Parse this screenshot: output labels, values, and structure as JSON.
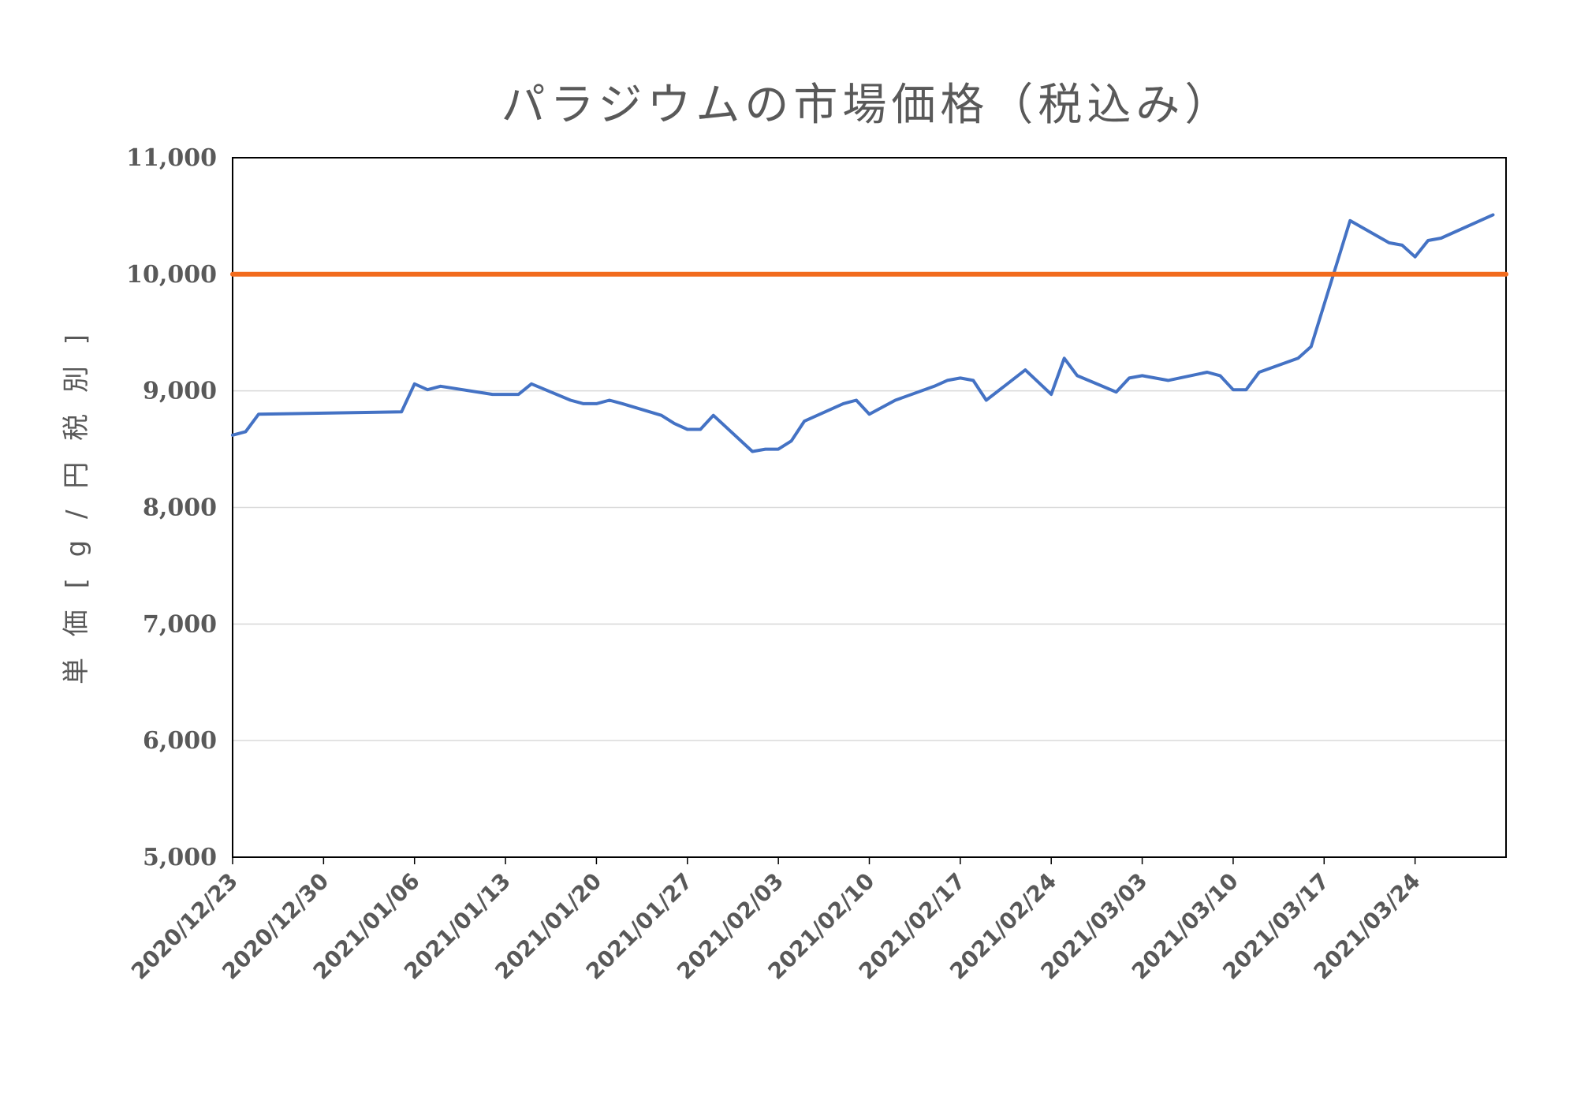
{
  "chart_data": {
    "type": "line",
    "title": "パラジウムの市場価格（税込み）",
    "ylabel": "単 価 [ g / 円 税 別 ]",
    "xlabel": "",
    "ylim": [
      5000,
      11000
    ],
    "y_ticks": [
      5000,
      6000,
      7000,
      8000,
      9000,
      10000,
      11000
    ],
    "y_tick_labels": [
      "5,000",
      "6,000",
      "7,000",
      "8,000",
      "9,000",
      "10,000",
      "11,000"
    ],
    "x_range": [
      "2020-12-23",
      "2021-03-31"
    ],
    "x_tick_dates": [
      "2020-12-23",
      "2020-12-30",
      "2021-01-06",
      "2021-01-13",
      "2021-01-20",
      "2021-01-27",
      "2021-02-03",
      "2021-02-10",
      "2021-02-17",
      "2021-02-24",
      "2021-03-03",
      "2021-03-10",
      "2021-03-17",
      "2021-03-24"
    ],
    "x_tick_labels": [
      "2020/12/23",
      "2020/12/30",
      "2021/01/06",
      "2021/01/13",
      "2021/01/20",
      "2021/01/27",
      "2021/02/03",
      "2021/02/10",
      "2021/02/17",
      "2021/02/24",
      "2021/03/03",
      "2021/03/10",
      "2021/03/17",
      "2021/03/24"
    ],
    "grid": true,
    "series": [
      {
        "color": "#4472C4",
        "points": [
          [
            "2020-12-23",
            8620
          ],
          [
            "2020-12-24",
            8650
          ],
          [
            "2020-12-25",
            8800
          ],
          [
            "2021-01-05",
            8820
          ],
          [
            "2021-01-06",
            9060
          ],
          [
            "2021-01-07",
            9010
          ],
          [
            "2021-01-08",
            9040
          ],
          [
            "2021-01-12",
            8970
          ],
          [
            "2021-01-14",
            8970
          ],
          [
            "2021-01-15",
            9060
          ],
          [
            "2021-01-18",
            8920
          ],
          [
            "2021-01-19",
            8890
          ],
          [
            "2021-01-20",
            8890
          ],
          [
            "2021-01-21",
            8920
          ],
          [
            "2021-01-22",
            8890
          ],
          [
            "2021-01-25",
            8790
          ],
          [
            "2021-01-26",
            8720
          ],
          [
            "2021-01-27",
            8670
          ],
          [
            "2021-01-28",
            8670
          ],
          [
            "2021-01-29",
            8790
          ],
          [
            "2021-02-01",
            8480
          ],
          [
            "2021-02-02",
            8500
          ],
          [
            "2021-02-03",
            8500
          ],
          [
            "2021-02-04",
            8570
          ],
          [
            "2021-02-05",
            8740
          ],
          [
            "2021-02-08",
            8890
          ],
          [
            "2021-02-09",
            8920
          ],
          [
            "2021-02-10",
            8800
          ],
          [
            "2021-02-12",
            8920
          ],
          [
            "2021-02-15",
            9040
          ],
          [
            "2021-02-16",
            9090
          ],
          [
            "2021-02-17",
            9110
          ],
          [
            "2021-02-18",
            9090
          ],
          [
            "2021-02-19",
            8920
          ],
          [
            "2021-02-22",
            9180
          ],
          [
            "2021-02-24",
            8970
          ],
          [
            "2021-02-25",
            9280
          ],
          [
            "2021-02-26",
            9130
          ],
          [
            "2021-03-01",
            8990
          ],
          [
            "2021-03-02",
            9110
          ],
          [
            "2021-03-03",
            9130
          ],
          [
            "2021-03-05",
            9090
          ],
          [
            "2021-03-08",
            9160
          ],
          [
            "2021-03-09",
            9130
          ],
          [
            "2021-03-10",
            9010
          ],
          [
            "2021-03-11",
            9010
          ],
          [
            "2021-03-12",
            9160
          ],
          [
            "2021-03-15",
            9280
          ],
          [
            "2021-03-16",
            9380
          ],
          [
            "2021-03-19",
            10460
          ],
          [
            "2021-03-22",
            10270
          ],
          [
            "2021-03-23",
            10250
          ],
          [
            "2021-03-24",
            10150
          ],
          [
            "2021-03-25",
            10290
          ],
          [
            "2021-03-26",
            10310
          ],
          [
            "2021-03-30",
            10510
          ]
        ]
      },
      {
        "color": "#F26B1D",
        "points": [
          [
            "2020-12-23",
            10000
          ],
          [
            "2021-03-31",
            10000
          ]
        ]
      }
    ]
  }
}
